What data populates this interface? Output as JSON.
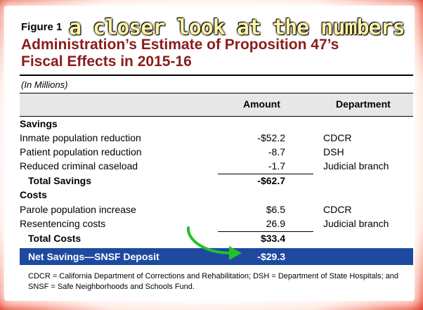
{
  "figure": {
    "label": "Figure 1",
    "overlay_text": "a closer look at the numbers",
    "title_line1": "Administration’s Estimate of Proposition 47’s",
    "title_line2": "Fiscal Effects in 2015-16"
  },
  "table": {
    "units": "(In Millions)",
    "headers": {
      "amount": "Amount",
      "department": "Department"
    },
    "savings_heading": "Savings",
    "savings_rows": [
      {
        "label": "Inmate population reduction",
        "amount": "-$52.2",
        "department": "CDCR"
      },
      {
        "label": "Patient population reduction",
        "amount": "-8.7",
        "department": "DSH"
      },
      {
        "label": "Reduced criminal caseload",
        "amount": "-1.7",
        "department": "Judicial branch"
      }
    ],
    "total_savings": {
      "label": "Total Savings",
      "amount": "-$62.7"
    },
    "costs_heading": "Costs",
    "costs_rows": [
      {
        "label": "Parole population increase",
        "amount": "$6.5",
        "department": "CDCR"
      },
      {
        "label": "Resentencing costs",
        "amount": "26.9",
        "department": "Judicial branch"
      }
    ],
    "total_costs": {
      "label": "Total Costs",
      "amount": "$33.4"
    },
    "net": {
      "label": "Net Savings—SNSF Deposit",
      "amount": "-$29.3"
    }
  },
  "footnote": "CDCR = California Department of Corrections and Rehabilitation; DSH = Department of State Hospitals; and SNSF = Safe Neighborhoods and Schools Fund.",
  "colors": {
    "frame_red": "#e02a12",
    "title_red": "#8a1c1c",
    "net_band_blue": "#1d4aa0",
    "arrow_green": "#22c22a",
    "overlay_yellow": "#fff3a6"
  },
  "icons": {
    "arrow": "curved-arrow-icon"
  }
}
